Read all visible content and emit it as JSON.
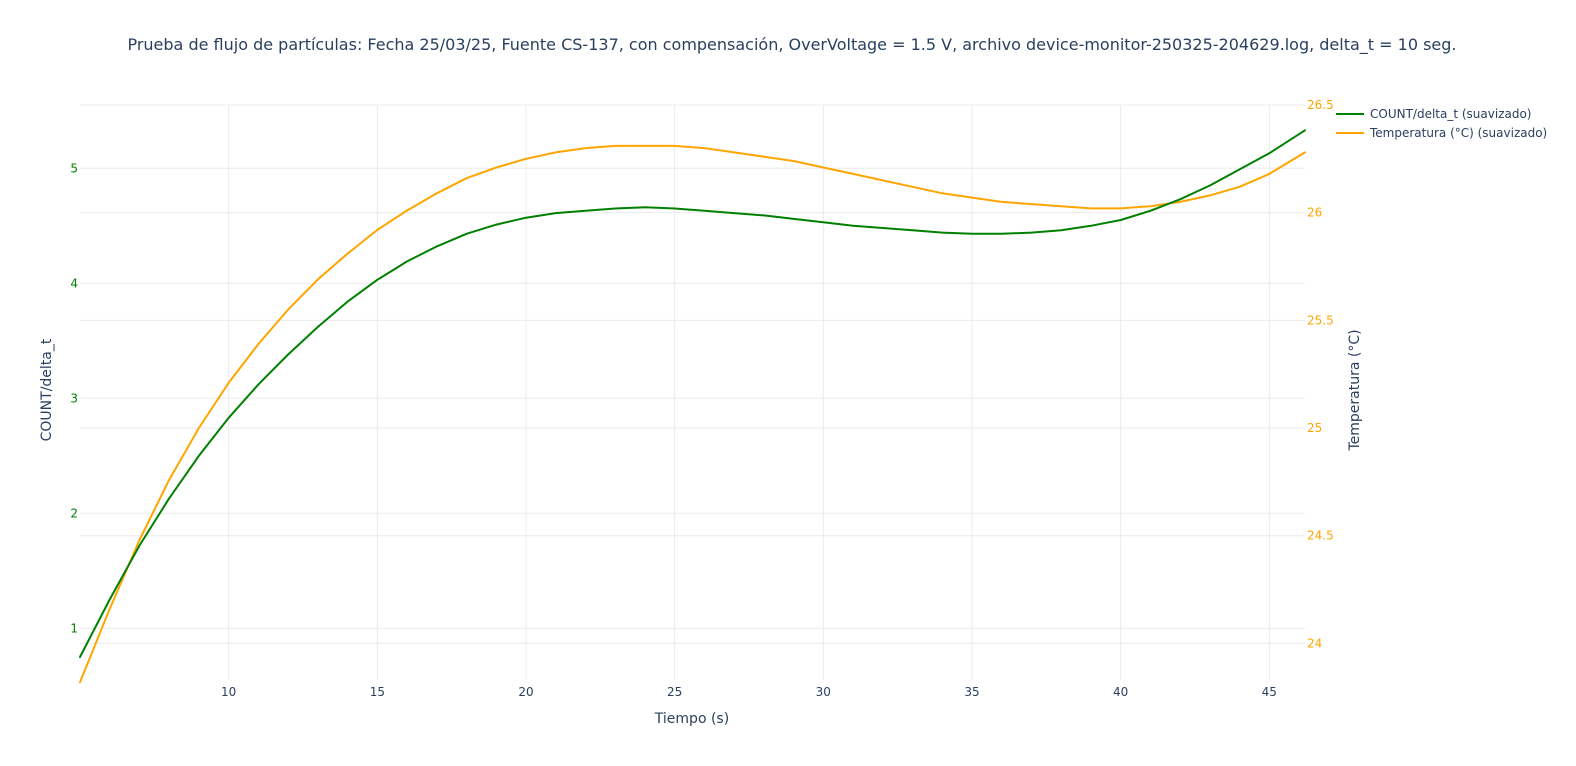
{
  "chart_data": {
    "type": "line",
    "title": "Prueba de flujo de partículas: Fecha 25/03/25, Fuente CS-137, con compensación, OverVoltage = 1.5 V, archivo device-monitor-250325-204629.log, delta_t = 10 seg.",
    "xlabel": "Tiempo (s)",
    "ylabel": "COUNT/delta_t",
    "y2label": "Temperatura (°C)",
    "xlim": [
      5,
      46.2
    ],
    "ylim": [
      0.55,
      5.55
    ],
    "y2lim": [
      23.83,
      26.5
    ],
    "x_ticks": [
      10,
      15,
      20,
      25,
      30,
      35,
      40,
      45
    ],
    "y_ticks": [
      1,
      2,
      3,
      4,
      5
    ],
    "y2_ticks": [
      "24",
      "24.5",
      "25",
      "25.5",
      "26",
      "26.5"
    ],
    "legend_position": "top-right",
    "grid": true,
    "series": [
      {
        "name": "COUNT/delta_t (suavizado)",
        "axis": "y",
        "color": "#008000",
        "x": [
          5,
          6,
          7,
          8,
          9,
          10,
          11,
          12,
          13,
          14,
          15,
          16,
          17,
          18,
          19,
          20,
          21,
          22,
          23,
          24,
          25,
          26,
          27,
          28,
          29,
          30,
          31,
          32,
          33,
          34,
          35,
          36,
          37,
          38,
          39,
          40,
          41,
          42,
          43,
          44,
          45,
          46.2
        ],
        "values": [
          0.75,
          1.25,
          1.72,
          2.13,
          2.5,
          2.83,
          3.12,
          3.38,
          3.62,
          3.84,
          4.03,
          4.19,
          4.32,
          4.43,
          4.51,
          4.57,
          4.61,
          4.63,
          4.65,
          4.66,
          4.65,
          4.63,
          4.61,
          4.59,
          4.56,
          4.53,
          4.5,
          4.48,
          4.46,
          4.44,
          4.43,
          4.43,
          4.44,
          4.46,
          4.5,
          4.55,
          4.63,
          4.73,
          4.85,
          4.99,
          5.13,
          5.33
        ]
      },
      {
        "name": "Temperatura (°C) (suavizado)",
        "axis": "y2",
        "color": "#ffa500",
        "x": [
          5,
          6,
          7,
          8,
          9,
          10,
          11,
          12,
          13,
          14,
          15,
          16,
          17,
          18,
          19,
          20,
          21,
          22,
          23,
          24,
          25,
          26,
          27,
          28,
          29,
          30,
          31,
          32,
          33,
          34,
          35,
          36,
          37,
          38,
          39,
          40,
          41,
          42,
          43,
          44,
          45,
          46.2
        ],
        "values": [
          23.82,
          24.16,
          24.48,
          24.76,
          25.0,
          25.21,
          25.39,
          25.55,
          25.69,
          25.81,
          25.92,
          26.01,
          26.09,
          26.16,
          26.21,
          26.25,
          26.28,
          26.3,
          26.31,
          26.31,
          26.31,
          26.3,
          26.28,
          26.26,
          26.24,
          26.21,
          26.18,
          26.15,
          26.12,
          26.09,
          26.07,
          26.05,
          26.04,
          26.03,
          26.02,
          26.02,
          26.03,
          26.05,
          26.08,
          26.12,
          26.18,
          26.28
        ]
      }
    ]
  }
}
